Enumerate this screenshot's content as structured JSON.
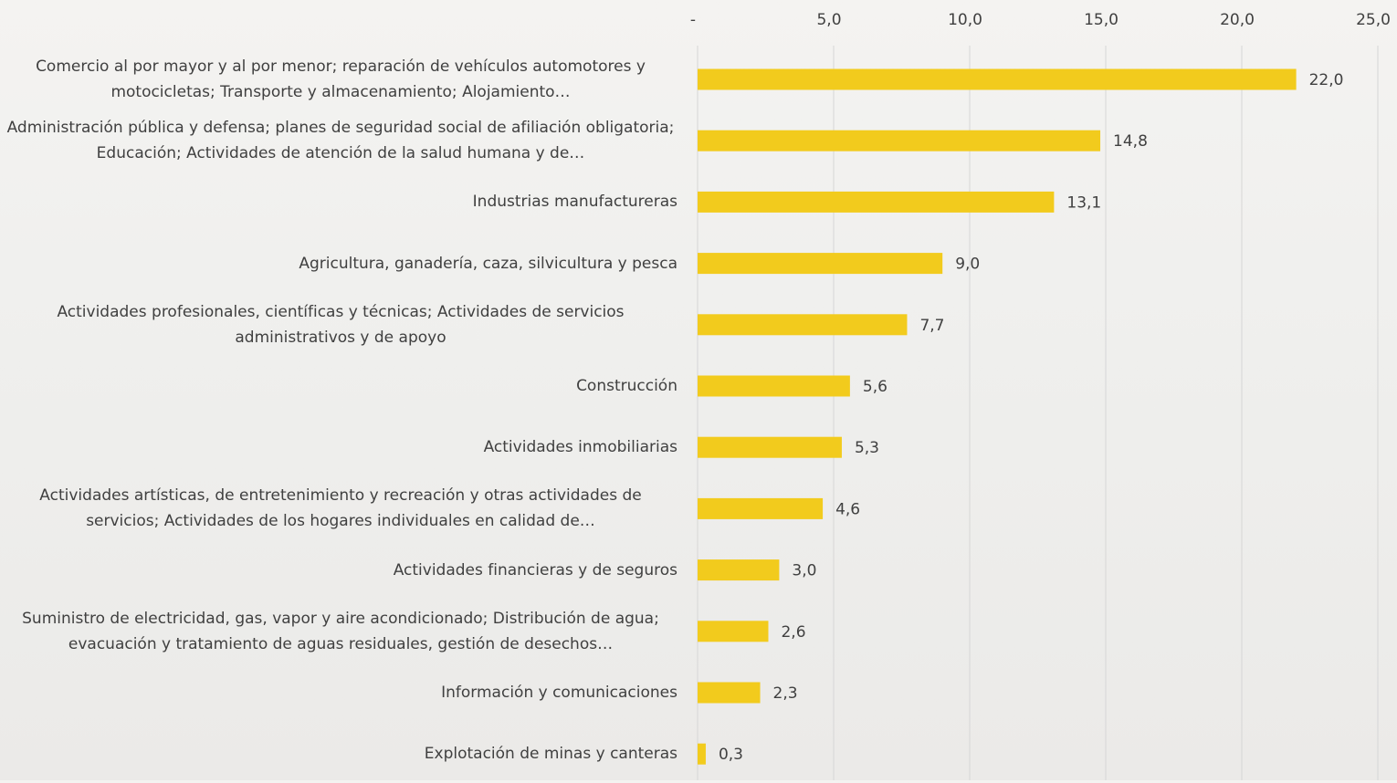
{
  "chart_data": {
    "type": "bar",
    "orientation": "horizontal",
    "categories": [
      "Comercio al por mayor y al por menor; reparación de vehículos automotores y motocicletas; Transporte y almacenamiento; Alojamiento…",
      "Administración pública y defensa; planes de seguridad social de afiliación obligatoria; Educación; Actividades de atención de la salud humana y de…",
      "Industrias manufactureras",
      "Agricultura, ganadería, caza, silvicultura y pesca",
      "Actividades profesionales, científicas y técnicas; Actividades de servicios administrativos y de apoyo",
      "Construcción",
      "Actividades inmobiliarias",
      "Actividades artísticas, de entretenimiento y recreación y otras actividades de servicios; Actividades de los hogares individuales en calidad de…",
      "Actividades financieras y de seguros",
      "Suministro de electricidad, gas, vapor y aire acondicionado; Distribución de agua; evacuación y tratamiento de aguas residuales, gestión de desechos…",
      "Información y comunicaciones",
      "Explotación de minas y canteras"
    ],
    "values": [
      22.0,
      14.8,
      13.1,
      9.0,
      7.7,
      5.6,
      5.3,
      4.6,
      3.0,
      2.6,
      2.3,
      0.3
    ],
    "value_labels": [
      "22,0",
      "14,8",
      "13,1",
      "9,0",
      "7,7",
      "5,6",
      "5,3",
      "4,6",
      "3,0",
      "2,6",
      "2,3",
      "0,3"
    ],
    "color": "#f2cb1d",
    "xlim": [
      0,
      25
    ],
    "xticks": [
      {
        "value": 0,
        "label": "-"
      },
      {
        "value": 5,
        "label": "5,0"
      },
      {
        "value": 10,
        "label": "10,0"
      },
      {
        "value": 15,
        "label": "15,0"
      },
      {
        "value": 20,
        "label": "20,0"
      },
      {
        "value": 25,
        "label": "25,0"
      }
    ],
    "grid": true
  }
}
